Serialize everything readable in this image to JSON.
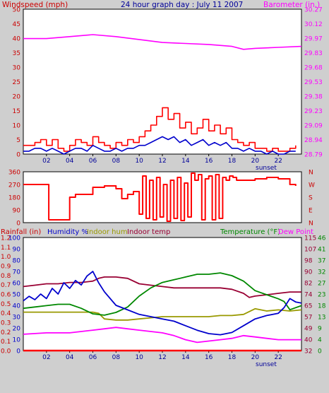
{
  "page": {
    "background": "#cfcfcf",
    "plot_background": "#ffffff"
  },
  "colors": {
    "red": "#ff0000",
    "magenta": "#ff00ff",
    "blue": "#0000cc",
    "olive": "#999900",
    "maroon": "#990033",
    "green": "#008800",
    "title_blue": "#000099",
    "sunset_blue": "#000099"
  },
  "chart_data": [
    {
      "id": "wind-baro",
      "type": "line",
      "title": "24 hour graph day : July 11 2007",
      "left_label": "Windspeed (mph)",
      "right_label": "Barometer (in.)",
      "annotation": "sunset",
      "x_ticks": [
        "02",
        "04",
        "06",
        "08",
        "10",
        "12",
        "14",
        "16",
        "18",
        "20",
        "22"
      ],
      "ylim_left": [
        0,
        50
      ],
      "y_ticks_left": [
        "0",
        "5",
        "10",
        "15",
        "20",
        "25",
        "30",
        "35",
        "40",
        "45",
        "50"
      ],
      "ylim_right": [
        28.79,
        30.27
      ],
      "y_ticks_right": [
        "28.79",
        "28.94",
        "29.09",
        "29.23",
        "29.38",
        "29.53",
        "29.68",
        "29.83",
        "29.97",
        "30.12",
        "30.27"
      ],
      "series": [
        {
          "axis": "right",
          "color": "magenta",
          "x": [
            0,
            2,
            4,
            6,
            8,
            10,
            12,
            14,
            16,
            18,
            19,
            20,
            22,
            24
          ],
          "y": [
            29.97,
            29.97,
            29.99,
            30.01,
            29.99,
            29.96,
            29.93,
            29.92,
            29.91,
            29.89,
            29.86,
            29.87,
            29.88,
            29.89
          ]
        },
        {
          "axis": "left",
          "color": "red",
          "step": true,
          "x": [
            0,
            0.5,
            1,
            1.5,
            2,
            2.5,
            3,
            3.5,
            4,
            4.5,
            5,
            5.5,
            6,
            6.5,
            7,
            7.5,
            8,
            8.5,
            9,
            9.5,
            10,
            10.5,
            11,
            11.5,
            12,
            12.5,
            13,
            13.5,
            14,
            14.5,
            15,
            15.5,
            16,
            16.5,
            17,
            17.5,
            18,
            18.5,
            19,
            19.5,
            20,
            20.5,
            21,
            21.5,
            22,
            22.5,
            23,
            23.5
          ],
          "y": [
            3,
            3,
            4,
            5,
            3,
            5,
            2,
            1,
            3,
            5,
            4,
            3,
            6,
            4,
            3,
            2,
            4,
            3,
            5,
            4,
            6,
            8,
            10,
            13,
            16,
            12,
            14,
            9,
            11,
            7,
            9,
            12,
            8,
            10,
            7,
            9,
            5,
            4,
            3,
            4,
            2,
            2,
            1,
            2,
            1,
            1,
            2,
            3
          ]
        },
        {
          "axis": "left",
          "color": "blue",
          "x": [
            0,
            0.5,
            1,
            1.5,
            2,
            2.5,
            3,
            3.5,
            4,
            4.5,
            5,
            5.5,
            6,
            6.5,
            7,
            7.5,
            8,
            8.5,
            9,
            9.5,
            10,
            10.5,
            11,
            11.5,
            12,
            12.5,
            13,
            13.5,
            14,
            14.5,
            15,
            15.5,
            16,
            16.5,
            17,
            17.5,
            18,
            18.5,
            19,
            19.5,
            20,
            20.5,
            21,
            21.5,
            22,
            22.5,
            23,
            23.5
          ],
          "y": [
            1,
            1,
            2,
            2,
            1,
            2,
            1,
            0,
            1,
            2,
            2,
            1,
            3,
            2,
            1,
            1,
            2,
            1,
            2,
            2,
            3,
            3,
            4,
            5,
            6,
            5,
            6,
            4,
            5,
            3,
            4,
            5,
            3,
            4,
            3,
            4,
            2,
            2,
            1,
            2,
            1,
            1,
            0,
            1,
            0,
            0,
            1,
            1
          ]
        }
      ]
    },
    {
      "id": "wind-direction",
      "type": "line",
      "ylim_left": [
        0,
        360
      ],
      "y_ticks_left": [
        "0",
        "90",
        "180",
        "270",
        "360"
      ],
      "y_ticks_right": [
        "N",
        "E",
        "S",
        "W",
        "N"
      ],
      "x_ticks": [],
      "series": [
        {
          "axis": "left",
          "color": "red",
          "step": true,
          "x": [
            0,
            2,
            2.2,
            3,
            4,
            4.5,
            6,
            7,
            8,
            8.5,
            9,
            9.5,
            10,
            10.3,
            10.6,
            10.9,
            11.2,
            11.5,
            11.8,
            12.1,
            12.4,
            12.7,
            13,
            13.3,
            13.6,
            13.9,
            14.2,
            14.5,
            14.8,
            15.1,
            15.4,
            15.7,
            16,
            16.3,
            16.6,
            16.9,
            17.2,
            17.5,
            17.8,
            18.1,
            18.4,
            19,
            20,
            21,
            22,
            23,
            23.5
          ],
          "y": [
            270,
            270,
            20,
            20,
            180,
            200,
            250,
            260,
            240,
            170,
            200,
            220,
            60,
            330,
            30,
            300,
            20,
            320,
            40,
            270,
            10,
            300,
            30,
            320,
            15,
            280,
            40,
            350,
            300,
            340,
            20,
            310,
            330,
            20,
            340,
            30,
            320,
            300,
            330,
            320,
            300,
            300,
            310,
            320,
            310,
            270,
            260
          ]
        }
      ]
    },
    {
      "id": "temp-humidity",
      "type": "line",
      "legend": [
        {
          "label": "Rainfall (in)",
          "color": "red"
        },
        {
          "label": "Humidity %",
          "color": "blue"
        },
        {
          "label": "Indoor hum",
          "color": "olive"
        },
        {
          "label": "Indoor temp",
          "color": "maroon"
        },
        {
          "label": "Temperature (°F)",
          "color": "green"
        },
        {
          "label": "Dew Point",
          "color": "magenta"
        }
      ],
      "annotation": "sunset",
      "x_ticks": [
        "02",
        "04",
        "06",
        "08",
        "10",
        "12",
        "14",
        "16",
        "18",
        "20",
        "22"
      ],
      "y_ticks_rain": [
        "0.0",
        "0.1",
        "0.2",
        "0.3",
        "0.4",
        "0.5",
        "0.6",
        "0.7",
        "0.8",
        "0.9",
        "1.0",
        "1.1",
        "1.2"
      ],
      "ylim_humidity": [
        0,
        100
      ],
      "y_ticks_humidity": [
        "0",
        "10",
        "20",
        "30",
        "40",
        "50",
        "60",
        "70",
        "80",
        "90",
        "100"
      ],
      "ylim_temp_F": [
        32,
        115
      ],
      "y_ticks_temp_F": [
        "32",
        "40",
        "49",
        "57",
        "65",
        "74",
        "82",
        "90",
        "98",
        "107",
        "115"
      ],
      "y_ticks_temp_C": [
        "0",
        "4",
        "9",
        "13",
        "18",
        "23",
        "27",
        "32",
        "37",
        "41",
        "46"
      ],
      "series": [
        {
          "name": "Rainfall (in)",
          "axis": "humidity",
          "color": "red",
          "x": [
            0,
            24
          ],
          "y": [
            0,
            0
          ]
        },
        {
          "name": "Dew Point",
          "axis": "temp",
          "color": "magenta",
          "x": [
            0,
            2,
            4,
            6,
            7,
            8,
            9,
            10,
            11,
            12,
            13,
            14,
            15,
            16,
            17,
            18,
            19,
            20,
            21,
            22,
            23,
            24
          ],
          "y": [
            44,
            45,
            45,
            47,
            48,
            49,
            48,
            47,
            46,
            45,
            43,
            40,
            38,
            39,
            40,
            41,
            43,
            42,
            41,
            40,
            40,
            40
          ]
        },
        {
          "name": "Indoor hum",
          "axis": "humidity",
          "color": "olive",
          "x": [
            0,
            1,
            2,
            3,
            4,
            5,
            6,
            6.5,
            7,
            8,
            9,
            10,
            11,
            12,
            13,
            14,
            15,
            16,
            17,
            18,
            19,
            20,
            21,
            22,
            23,
            24
          ],
          "y": [
            34,
            34,
            34,
            34,
            34,
            34,
            34,
            33,
            28,
            27,
            27,
            28,
            29,
            30,
            30,
            30,
            30,
            30,
            31,
            31,
            32,
            37,
            35,
            36,
            35,
            36
          ]
        },
        {
          "name": "Indoor temp",
          "axis": "temp",
          "color": "maroon",
          "x": [
            0,
            1,
            2,
            3,
            4,
            5,
            6,
            6.5,
            7,
            8,
            9,
            10,
            11,
            12,
            13,
            14,
            15,
            16,
            17,
            18,
            19,
            19.5,
            20,
            21,
            22,
            23,
            24
          ],
          "y": [
            79,
            80,
            81,
            81,
            82,
            82,
            83,
            85,
            86,
            86,
            85,
            81,
            80,
            79,
            78,
            78,
            78,
            78,
            78,
            77,
            74,
            71,
            72,
            73,
            74,
            75,
            75
          ]
        },
        {
          "name": "Temperature (°F)",
          "axis": "temp",
          "color": "green",
          "x": [
            0,
            1,
            2,
            3,
            4,
            5,
            6,
            7,
            8,
            9,
            10,
            11,
            12,
            13,
            14,
            15,
            16,
            17,
            18,
            19,
            20,
            21,
            22,
            22.5,
            23,
            24
          ],
          "y": [
            63,
            64,
            65,
            66,
            66,
            63,
            59,
            58,
            60,
            64,
            72,
            78,
            82,
            84,
            86,
            88,
            88,
            89,
            87,
            83,
            76,
            73,
            70,
            68,
            62,
            65
          ]
        },
        {
          "name": "Humidity %",
          "axis": "humidity",
          "color": "blue",
          "x": [
            0,
            0.5,
            1,
            1.5,
            2,
            2.5,
            3,
            3.5,
            4,
            4.5,
            5,
            5.5,
            6,
            6.5,
            7,
            8,
            9,
            10,
            11,
            12,
            13,
            14,
            15,
            16,
            17,
            18,
            19,
            20,
            21,
            22,
            22.5,
            23,
            23.5,
            24
          ],
          "y": [
            44,
            48,
            45,
            50,
            46,
            55,
            50,
            60,
            55,
            62,
            58,
            66,
            70,
            60,
            52,
            40,
            36,
            32,
            30,
            28,
            26,
            22,
            18,
            15,
            14,
            16,
            22,
            28,
            31,
            33,
            38,
            46,
            43,
            42
          ]
        }
      ]
    }
  ]
}
